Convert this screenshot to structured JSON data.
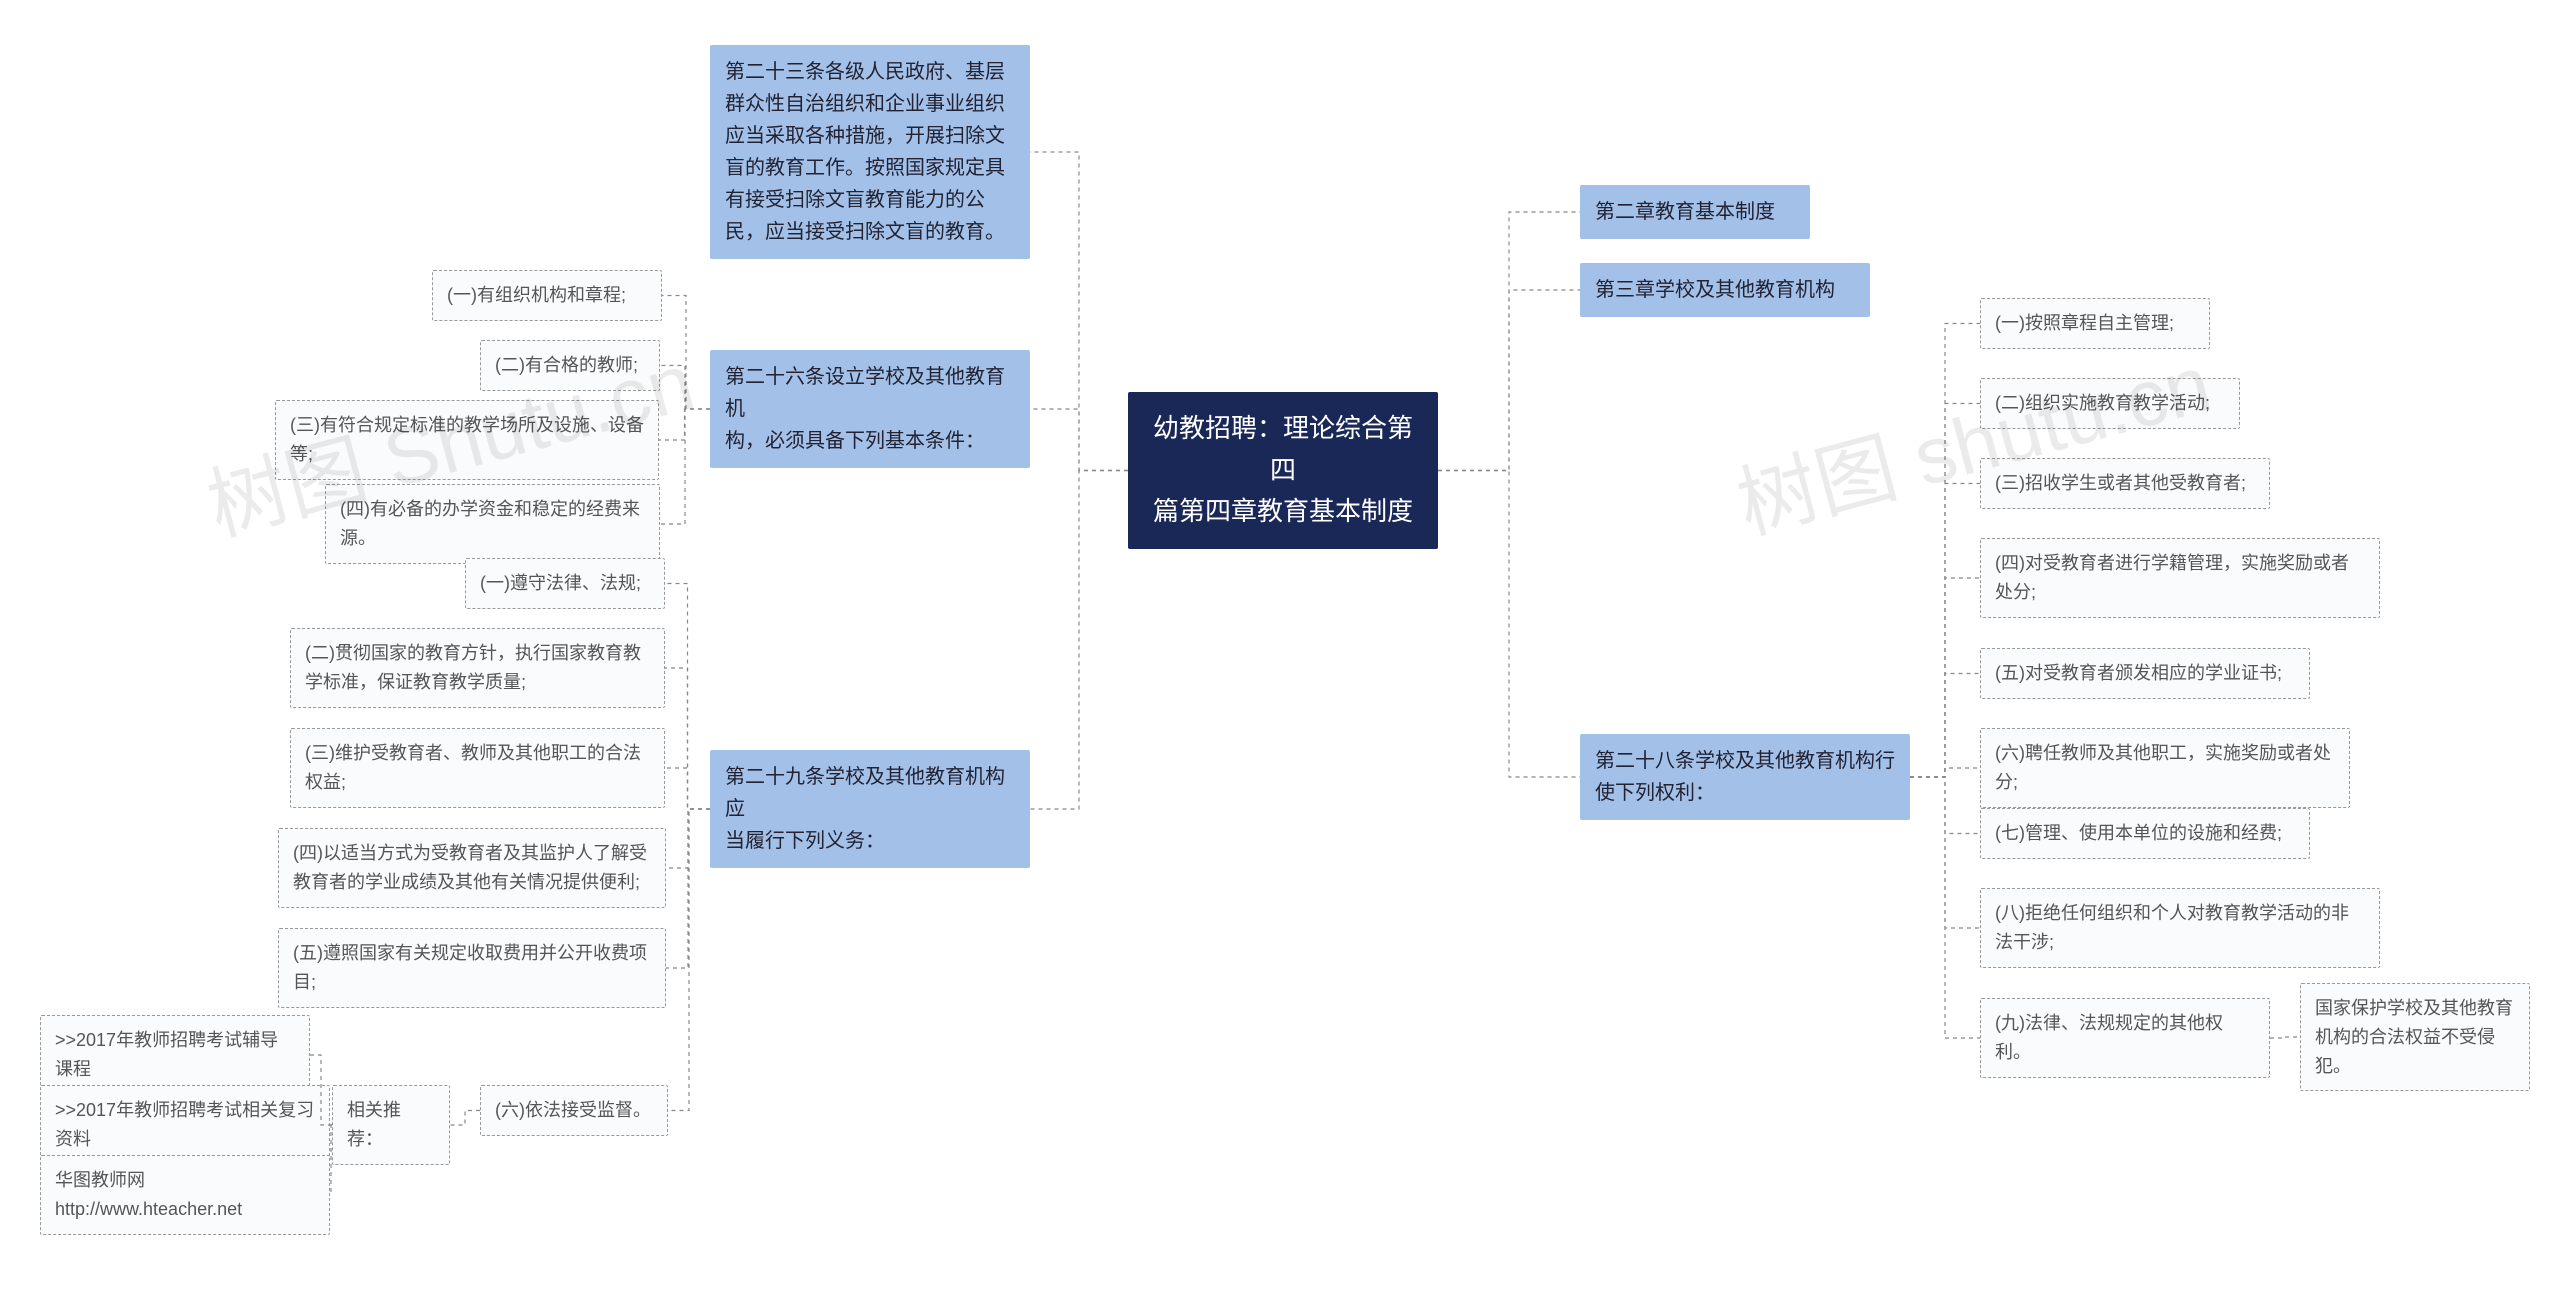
{
  "watermarks": {
    "left": "树图 Shutu.cn",
    "right": "树图 shutu.cn"
  },
  "root": {
    "line1": "幼教招聘：理论综合第四",
    "line2": "篇第四章教育基本制度"
  },
  "right": {
    "ch2": "第二章教育基本制度",
    "ch3": "第三章学校及其他教育机构",
    "art28": {
      "line1": "第二十八条学校及其他教育机构行",
      "line2": "使下列权利："
    },
    "art28_items": {
      "i1": "(一)按照章程自主管理;",
      "i2": "(二)组织实施教育教学活动;",
      "i3": "(三)招收学生或者其他受教育者;",
      "i4": "(四)对受教育者进行学籍管理，实施奖励或者处分;",
      "i5": "(五)对受教育者颁发相应的学业证书;",
      "i6": "(六)聘任教师及其他职工，实施奖励或者处分;",
      "i7": "(七)管理、使用本单位的设施和经费;",
      "i8": "(八)拒绝任何组织和个人对教育教学活动的非法干涉;",
      "i9": "(九)法律、法规规定的其他权利。",
      "i9_sub": "国家保护学校及其他教育机构的合法权益不受侵犯。"
    }
  },
  "left": {
    "art23": "第二十三条各级人民政府、基层群众性自治组织和企业事业组织应当采取各种措施，开展扫除文盲的教育工作。按照国家规定具有接受扫除文盲教育能力的公民，应当接受扫除文盲的教育。",
    "art26": {
      "line1": "第二十六条设立学校及其他教育机",
      "line2": "构，必须具备下列基本条件："
    },
    "art26_items": {
      "i1": "(一)有组织机构和章程;",
      "i2": "(二)有合格的教师;",
      "i3": "(三)有符合规定标准的教学场所及设施、设备等;",
      "i4": "(四)有必备的办学资金和稳定的经费来源。"
    },
    "art29": {
      "line1": "第二十九条学校及其他教育机构应",
      "line2": "当履行下列义务："
    },
    "art29_items": {
      "i1": "(一)遵守法律、法规;",
      "i2": "(二)贯彻国家的教育方针，执行国家教育教学标准，保证教育教学质量;",
      "i3": "(三)维护受教育者、教师及其他职工的合法权益;",
      "i4": "(四)以适当方式为受教育者及其监护人了解受教育者的学业成绩及其他有关情况提供便利;",
      "i5": "(五)遵照国家有关规定收取费用并公开收费项目;",
      "i6": "(六)依法接受监督。"
    },
    "related": "相关推荐：",
    "related_items": {
      "r1": ">>2017年教师招聘考试辅导课程",
      "r2": ">>2017年教师招聘考试相关复习资料",
      "r3": "华图教师网http://www.hteacher.net"
    }
  },
  "style": {
    "root_bg": "#1a2857",
    "root_fg": "#ffffff",
    "level1_bg": "#a3c1e8",
    "level2_border": "#999999",
    "connector_color": "#888888",
    "background": "#ffffff",
    "root_fontsize": 26,
    "level1_fontsize": 20,
    "level2_fontsize": 18
  }
}
